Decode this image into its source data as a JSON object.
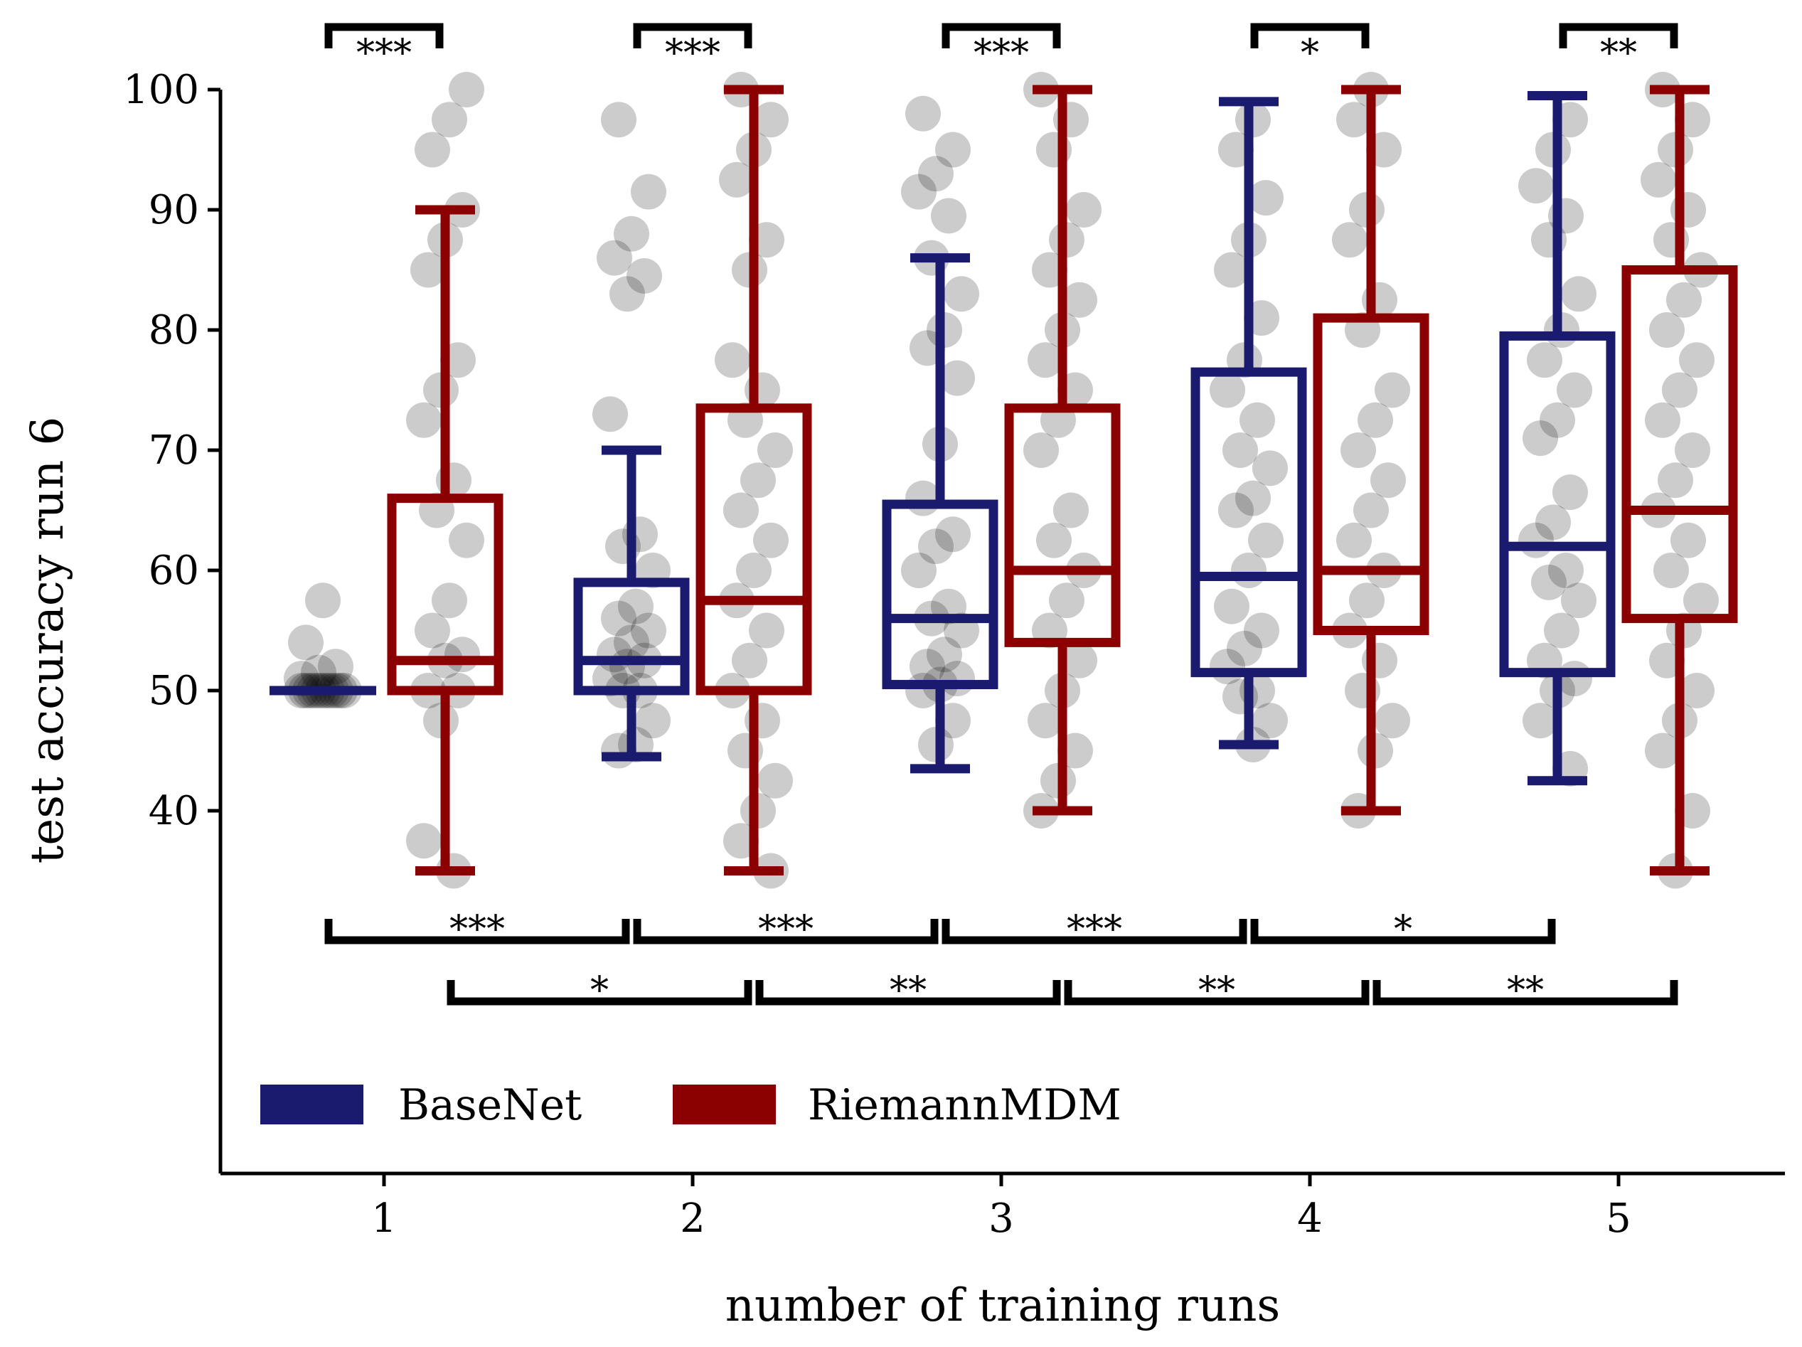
{
  "chart_data": {
    "type": "box",
    "xlabel": "number of training runs",
    "ylabel": "test accuracy run 6",
    "categories": [
      "1",
      "2",
      "3",
      "4",
      "5"
    ],
    "yticks": [
      40,
      50,
      60,
      70,
      80,
      90,
      100
    ],
    "ylim": [
      23,
      104
    ],
    "grid": false,
    "legend_position": "bottom-left",
    "series": [
      {
        "name": "BaseNet",
        "color": "#1a1a6e",
        "boxes": [
          {
            "whisker_low": 50,
            "q1": 50,
            "median": 50,
            "q3": 50,
            "whisker_high": 50
          },
          {
            "whisker_low": 44.5,
            "q1": 50,
            "median": 52.5,
            "q3": 59,
            "whisker_high": 70
          },
          {
            "whisker_low": 43.5,
            "q1": 50.5,
            "median": 56,
            "q3": 65.5,
            "whisker_high": 86
          },
          {
            "whisker_low": 45.5,
            "q1": 51.5,
            "median": 59.5,
            "q3": 76.5,
            "whisker_high": 99
          },
          {
            "whisker_low": 42.5,
            "q1": 51.5,
            "median": 62,
            "q3": 79.5,
            "whisker_high": 99.5
          }
        ],
        "points": [
          [
            50,
            50,
            50,
            50,
            50,
            50,
            50,
            50,
            50,
            50,
            50,
            51,
            51.5,
            52,
            54,
            57.5
          ],
          [
            45,
            45.5,
            47.5,
            50,
            50,
            51,
            52,
            52.5,
            53,
            54,
            55,
            56,
            57,
            60,
            62,
            63,
            73,
            83,
            84.5,
            86,
            88,
            91.5,
            97.5
          ],
          [
            45.5,
            47.5,
            50,
            50.5,
            51,
            52,
            53,
            55,
            56,
            57,
            60,
            62,
            63,
            66,
            70.5,
            76,
            78.5,
            80,
            83,
            86,
            89.5,
            91.5,
            93,
            95,
            98
          ],
          [
            45.5,
            47.5,
            49.5,
            50,
            52,
            53.5,
            55,
            57,
            60,
            62.5,
            65,
            66,
            68.5,
            70,
            72.5,
            75,
            77.5,
            81,
            85,
            87.5,
            91,
            95,
            97.5
          ],
          [
            43.5,
            47.5,
            50,
            51,
            52.5,
            55,
            57.5,
            59,
            60,
            62.5,
            64,
            66.5,
            71,
            72.5,
            75,
            77.5,
            80,
            83,
            87.5,
            89.5,
            92,
            95,
            97.5
          ]
        ]
      },
      {
        "name": "RiemannMDM",
        "color": "#8b0000",
        "boxes": [
          {
            "whisker_low": 35,
            "q1": 50,
            "median": 52.5,
            "q3": 66,
            "whisker_high": 90
          },
          {
            "whisker_low": 35,
            "q1": 50,
            "median": 57.5,
            "q3": 73.5,
            "whisker_high": 100
          },
          {
            "whisker_low": 40,
            "q1": 54,
            "median": 60,
            "q3": 73.5,
            "whisker_high": 100
          },
          {
            "whisker_low": 40,
            "q1": 55,
            "median": 60,
            "q3": 81,
            "whisker_high": 100
          },
          {
            "whisker_low": 35,
            "q1": 56,
            "median": 65,
            "q3": 85,
            "whisker_high": 100
          }
        ],
        "points": [
          [
            35,
            37.5,
            47.5,
            50,
            50,
            52.5,
            53,
            55,
            57.5,
            62.5,
            65,
            67.5,
            72.5,
            75,
            77.5,
            85,
            87.5,
            90,
            95,
            97.5,
            100
          ],
          [
            35,
            37.5,
            40,
            42.5,
            45,
            47.5,
            50,
            52.5,
            55,
            57.5,
            60,
            62.5,
            65,
            67.5,
            70,
            72.5,
            75,
            77.5,
            85,
            87.5,
            92.5,
            95,
            97.5,
            100
          ],
          [
            40,
            42.5,
            45,
            47.5,
            50,
            52.5,
            55,
            57.5,
            60,
            62.5,
            65,
            70,
            72.5,
            75,
            77.5,
            80,
            82.5,
            85,
            87.5,
            90,
            95,
            97.5,
            100
          ],
          [
            40,
            45,
            47.5,
            50,
            52.5,
            55,
            57.5,
            60,
            62.5,
            65,
            67.5,
            70,
            72.5,
            75,
            80,
            82.5,
            87.5,
            90,
            95,
            97.5,
            100
          ],
          [
            35,
            40,
            45,
            47.5,
            50,
            52.5,
            55,
            57.5,
            60,
            62.5,
            65,
            67.5,
            70,
            72.5,
            75,
            77.5,
            80,
            82.5,
            85,
            87.5,
            90,
            92.5,
            95,
            97.5,
            100
          ]
        ]
      }
    ],
    "annotations": {
      "between_methods": [
        "***",
        "***",
        "***",
        "*",
        "**"
      ],
      "basenet_consecutive": [
        "***",
        "***",
        "***",
        "*"
      ],
      "riemann_consecutive": [
        "*",
        "**",
        "**",
        "**"
      ]
    }
  }
}
